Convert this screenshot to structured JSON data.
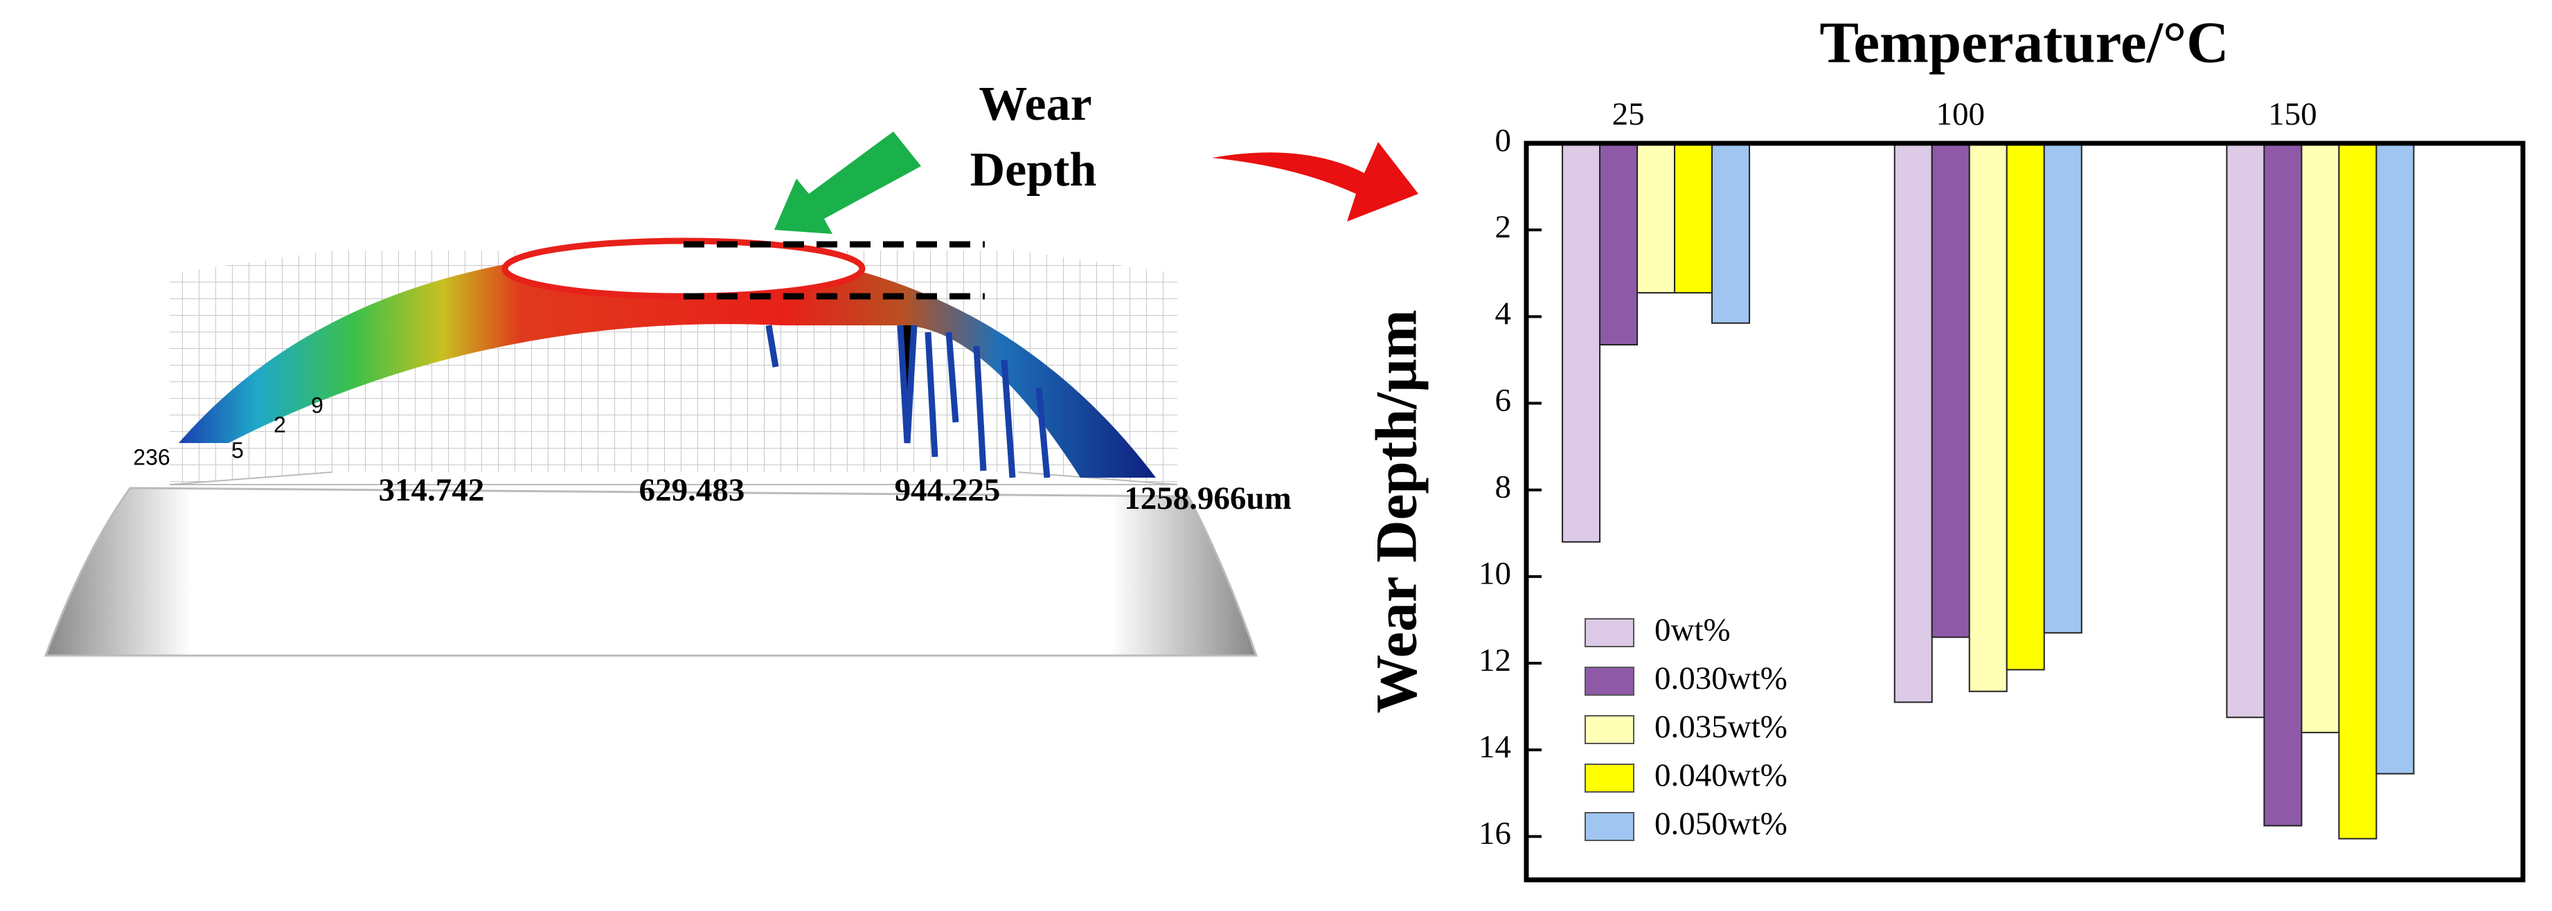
{
  "chart_data": {
    "type": "bar",
    "title": "Temperature/°C",
    "ylabel": "Wear Depth/µm",
    "categories": [
      "25",
      "100",
      "150"
    ],
    "series": [
      {
        "name": "0wt%",
        "color": "#dccae6",
        "values": [
          9.2,
          12.9,
          13.25
        ]
      },
      {
        "name": "0.030wt%",
        "color": "#8e5aa8",
        "values": [
          4.65,
          11.4,
          15.75
        ]
      },
      {
        "name": "0.035wt%",
        "color": "#ffffb5",
        "values": [
          3.45,
          12.65,
          13.6
        ]
      },
      {
        "name": "0.040wt%",
        "color": "#ffff00",
        "values": [
          3.45,
          12.15,
          16.05
        ]
      },
      {
        "name": "0.050wt%",
        "color": "#9fc5f0",
        "values": [
          4.15,
          11.3,
          14.55
        ]
      }
    ],
    "ylim": [
      0,
      17
    ],
    "yticks": [
      0,
      2,
      4,
      6,
      8,
      10,
      12,
      14,
      16
    ],
    "inverted_y": true,
    "category_axis": "top",
    "grid": false,
    "legend": "lower left",
    "annotations": [
      "Wear",
      "Depth"
    ]
  },
  "surface": {
    "x_labels": [
      "314.742",
      "629.483",
      "944.225",
      "1258.966um"
    ],
    "y_labels": [
      "236",
      "5",
      "2",
      "9"
    ]
  }
}
